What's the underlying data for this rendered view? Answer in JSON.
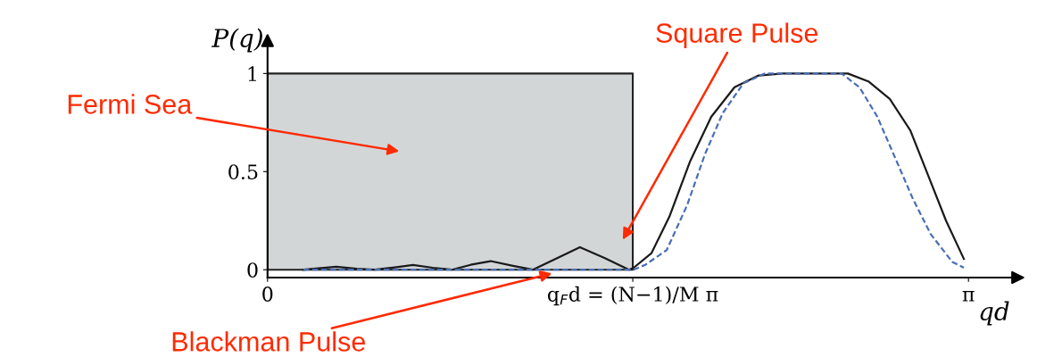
{
  "chart_data": {
    "type": "line",
    "xlabel": "qd",
    "ylabel": "P(q)",
    "xlim": [
      0,
      3.34
    ],
    "ylim": [
      -0.04,
      1.17
    ],
    "xticks": [
      0,
      {
        "value": 1.637,
        "label": "q$_{F}$d = (N−1)/M π"
      },
      {
        "value": 3.1416,
        "label": "π"
      }
    ],
    "yticks": [
      0,
      0.5,
      1
    ],
    "grid": false,
    "legend": false,
    "series": [
      {
        "type": "area",
        "color": "#d3d6d7",
        "x": [
          0,
          1.637
        ],
        "values": [
          1,
          1
        ]
      },
      {
        "color": "#1a1a1a",
        "line_style": "solid",
        "x": [
          0.16,
          0.308,
          0.4,
          0.48,
          0.57,
          0.652,
          0.74,
          0.828,
          0.91,
          1.0,
          1.1,
          1.189,
          1.3,
          1.4,
          1.51,
          1.62,
          1.641,
          1.721,
          1.801,
          1.893,
          1.989,
          2.093,
          2.201,
          2.309,
          2.601,
          2.693,
          2.789,
          2.881,
          2.961,
          3.041,
          3.121
        ],
        "values": [
          0,
          0.015,
          0.005,
          0,
          0.012,
          0.024,
          0.01,
          0,
          0.025,
          0.044,
          0.02,
          0,
          0.06,
          0.115,
          0.06,
          0,
          0.01,
          0.085,
          0.27,
          0.55,
          0.78,
          0.93,
          0.99,
          1.0,
          1.0,
          0.96,
          0.87,
          0.71,
          0.48,
          0.25,
          0.055
        ]
      },
      {
        "color": "#4a6fb5",
        "line_style": "dashed",
        "x": [
          0.16,
          1.64,
          1.693,
          1.789,
          1.881,
          1.961,
          2.041,
          2.133,
          2.229,
          2.573,
          2.653,
          2.733,
          2.813,
          2.893,
          2.973,
          3.069,
          3.121
        ],
        "values": [
          0,
          0,
          0.025,
          0.1,
          0.33,
          0.59,
          0.8,
          0.95,
          1.0,
          1.0,
          0.93,
          0.78,
          0.57,
          0.36,
          0.18,
          0.04,
          0.01
        ]
      }
    ],
    "annotations": [
      "Fermi Sea",
      "Square Pulse",
      "Blackman Pulse"
    ]
  }
}
